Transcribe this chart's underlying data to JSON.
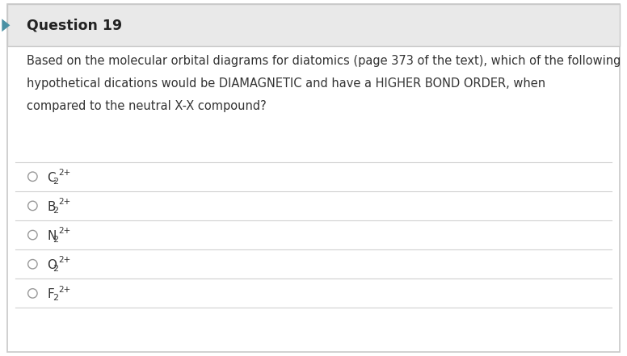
{
  "title": "Question 19",
  "question_text_line1": "Based on the molecular orbital diagrams for diatomics (page 373 of the text), which of the following",
  "question_text_line2": "hypothetical dications would be DIAMAGNETIC and have a HIGHER BOND ORDER, when",
  "question_text_line3": "compared to the neutral X-X compound?",
  "options": [
    {
      "label": "C",
      "subscript": "2",
      "superscript": "2+"
    },
    {
      "label": "B",
      "subscript": "2",
      "superscript": "2+"
    },
    {
      "label": "N",
      "subscript": "2",
      "superscript": "2+"
    },
    {
      "label": "O",
      "subscript": "2",
      "superscript": "2+"
    },
    {
      "label": "F",
      "subscript": "2",
      "superscript": "2+"
    }
  ],
  "header_bg": "#e9e9e9",
  "body_bg": "#ffffff",
  "border_color": "#c8c8c8",
  "title_color": "#222222",
  "text_color": "#333333",
  "option_color": "#333333",
  "line_color": "#d0d0d0",
  "circle_color": "#999999",
  "header_font_size": 12.5,
  "question_font_size": 10.5,
  "option_font_size": 11,
  "left_arrow_color": "#4a90a4"
}
